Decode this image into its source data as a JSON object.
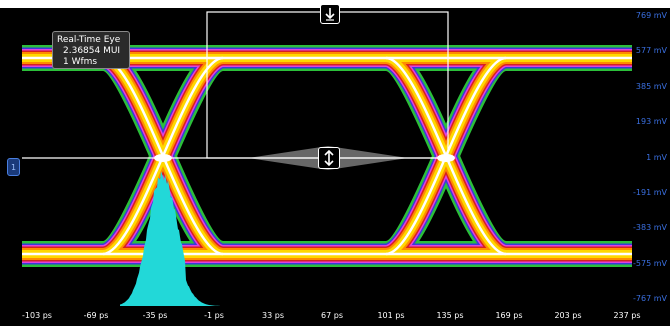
{
  "app": {
    "panel_label": "Real-Time Eye"
  },
  "info_box": {
    "title": "Real-Time Eye",
    "ui_value": "2.36854 MUI",
    "waveforms": "1 Wfms"
  },
  "y_axis": {
    "ticks": [
      "769 mV",
      "577 mV",
      "385 mV",
      "193 mV",
      "1 mV",
      "-191 mV",
      "-383 mV",
      "-575 mV",
      "-767 mV"
    ],
    "color": "#3a6fe0"
  },
  "x_axis": {
    "ticks": [
      "-103 ps",
      "-69 ps",
      "-35 ps",
      "-1 ps",
      "33 ps",
      "67 ps",
      "101 ps",
      "135 ps",
      "169 ps",
      "203 ps",
      "237 ps"
    ]
  },
  "reference_marker": {
    "label": "1"
  },
  "histogram": {
    "color": "#22d8d8"
  },
  "eye_colors": {
    "outer": "#2bbf3a",
    "blue": "#3a3ad8",
    "magenta": "#e040e0",
    "red": "#d82020",
    "orange": "#ff8c00",
    "yellow": "#ffd800",
    "white": "#ffffff"
  },
  "icons": {
    "top_handle": "down-arrow-icon",
    "center_handle": "vertical-resize-icon"
  }
}
